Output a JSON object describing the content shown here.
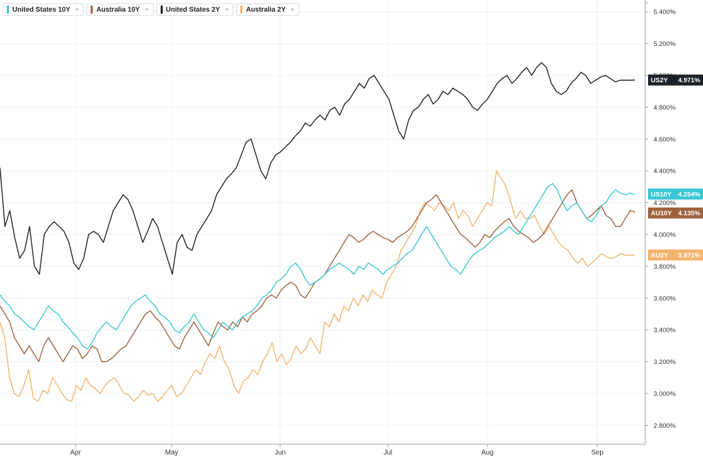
{
  "legend": [
    {
      "label": "United States 10Y",
      "color": "#3cc8d3",
      "close": "×"
    },
    {
      "label": "Australia 10Y",
      "color": "#a0623e",
      "close": "×"
    },
    {
      "label": "United States 2Y",
      "color": "#222222",
      "close": "×"
    },
    {
      "label": "Australia 2Y",
      "color": "#f2b46e",
      "close": "×"
    }
  ],
  "badges": [
    {
      "ticker": "US2Y",
      "value": "4.971%",
      "color": "#1b2228"
    },
    {
      "ticker": "US10Y",
      "value": "4.254%",
      "color": "#3cc8d3"
    },
    {
      "ticker": "AU10Y",
      "value": "4.135%",
      "color": "#a0623e"
    },
    {
      "ticker": "AU2Y",
      "value": "3.871%",
      "color": "#f2b46e"
    }
  ],
  "chart_data": {
    "type": "line",
    "x_labels": [
      "Apr",
      "May",
      "Jun",
      "Jul",
      "Aug",
      "Sep"
    ],
    "y_ticks": [
      "5.400%",
      "5.200%",
      "5.000%",
      "4.800%",
      "4.600%",
      "4.400%",
      "4.200%",
      "4.000%",
      "3.800%",
      "3.600%",
      "3.400%",
      "3.200%",
      "3.000%",
      "2.800%"
    ],
    "ylim": [
      2.72,
      5.46
    ],
    "grid": true,
    "series": [
      {
        "name": "Australia 2Y",
        "color": "#f2b46e",
        "values": [
          3.45,
          3.35,
          3.1,
          3.0,
          2.98,
          3.05,
          3.15,
          2.97,
          2.95,
          3.02,
          3.0,
          3.1,
          3.05,
          3.0,
          2.96,
          2.95,
          3.05,
          3.02,
          3.1,
          3.05,
          3.03,
          3.0,
          3.05,
          3.08,
          3.1,
          3.05,
          3.0,
          2.99,
          2.95,
          2.98,
          3.02,
          2.99,
          3.0,
          2.95,
          2.98,
          3.02,
          3.05,
          2.98,
          3.0,
          3.05,
          3.1,
          3.15,
          3.12,
          3.2,
          3.25,
          3.22,
          3.3,
          3.2,
          3.15,
          3.05,
          3.0,
          3.08,
          3.1,
          3.15,
          3.12,
          3.2,
          3.25,
          3.32,
          3.2,
          3.25,
          3.18,
          3.22,
          3.3,
          3.25,
          3.28,
          3.35,
          3.3,
          3.25,
          3.45,
          3.42,
          3.5,
          3.45,
          3.55,
          3.52,
          3.6,
          3.55,
          3.62,
          3.58,
          3.65,
          3.62,
          3.6,
          3.7,
          3.75,
          3.8,
          3.9,
          3.95,
          4.0,
          4.05,
          4.15,
          4.2,
          4.18,
          4.15,
          4.2,
          4.18,
          4.15,
          4.2,
          4.1,
          4.15,
          4.12,
          4.05,
          4.1,
          4.15,
          4.2,
          4.18,
          4.4,
          4.35,
          4.3,
          4.2,
          4.1,
          4.15,
          4.1,
          4.1,
          4.12,
          4.05,
          4.0,
          4.05,
          4.0,
          3.95,
          3.92,
          3.9,
          3.85,
          3.82,
          3.85,
          3.8,
          3.82,
          3.85,
          3.88,
          3.86,
          3.85,
          3.86,
          3.88,
          3.87,
          3.87,
          3.87
        ]
      },
      {
        "name": "Australia 10Y",
        "color": "#a0623e",
        "values": [
          3.55,
          3.5,
          3.45,
          3.35,
          3.3,
          3.25,
          3.3,
          3.25,
          3.2,
          3.3,
          3.35,
          3.3,
          3.25,
          3.2,
          3.25,
          3.3,
          3.28,
          3.22,
          3.25,
          3.3,
          3.28,
          3.2,
          3.2,
          3.22,
          3.25,
          3.28,
          3.3,
          3.35,
          3.4,
          3.45,
          3.5,
          3.52,
          3.48,
          3.45,
          3.4,
          3.35,
          3.3,
          3.28,
          3.35,
          3.4,
          3.45,
          3.4,
          3.35,
          3.3,
          3.38,
          3.45,
          3.42,
          3.4,
          3.45,
          3.42,
          3.48,
          3.45,
          3.5,
          3.52,
          3.55,
          3.6,
          3.62,
          3.6,
          3.65,
          3.68,
          3.7,
          3.68,
          3.62,
          3.6,
          3.65,
          3.7,
          3.72,
          3.75,
          3.8,
          3.85,
          3.9,
          3.95,
          4.0,
          3.98,
          3.95,
          3.97,
          4.0,
          4.02,
          4.0,
          3.98,
          3.97,
          3.95,
          3.98,
          4.0,
          4.02,
          4.05,
          4.1,
          4.15,
          4.2,
          4.22,
          4.25,
          4.2,
          4.15,
          4.1,
          4.05,
          4.0,
          3.98,
          3.95,
          3.92,
          3.95,
          4.0,
          3.98,
          4.02,
          4.05,
          4.08,
          4.1,
          4.05,
          4.02,
          4.0,
          3.98,
          3.95,
          3.97,
          4.0,
          4.05,
          4.1,
          4.15,
          4.2,
          4.25,
          4.28,
          4.2,
          4.15,
          4.1,
          4.12,
          4.15,
          4.18,
          4.12,
          4.1,
          4.05,
          4.05,
          4.1,
          4.15,
          4.14
        ]
      },
      {
        "name": "United States 10Y",
        "color": "#3cc8d3",
        "values": [
          3.62,
          3.58,
          3.55,
          3.5,
          3.48,
          3.45,
          3.42,
          3.4,
          3.45,
          3.5,
          3.55,
          3.52,
          3.5,
          3.45,
          3.42,
          3.38,
          3.35,
          3.3,
          3.28,
          3.32,
          3.38,
          3.42,
          3.45,
          3.42,
          3.4,
          3.45,
          3.5,
          3.55,
          3.58,
          3.6,
          3.62,
          3.58,
          3.55,
          3.5,
          3.48,
          3.45,
          3.4,
          3.38,
          3.42,
          3.45,
          3.5,
          3.45,
          3.4,
          3.38,
          3.35,
          3.4,
          3.45,
          3.42,
          3.4,
          3.45,
          3.48,
          3.5,
          3.52,
          3.55,
          3.6,
          3.62,
          3.65,
          3.7,
          3.72,
          3.75,
          3.8,
          3.82,
          3.78,
          3.72,
          3.68,
          3.7,
          3.72,
          3.75,
          3.78,
          3.8,
          3.82,
          3.8,
          3.78,
          3.75,
          3.8,
          3.78,
          3.82,
          3.8,
          3.78,
          3.75,
          3.78,
          3.8,
          3.82,
          3.85,
          3.88,
          3.9,
          3.95,
          4.0,
          4.05,
          4.0,
          3.95,
          3.9,
          3.85,
          3.8,
          3.78,
          3.75,
          3.8,
          3.85,
          3.88,
          3.9,
          3.92,
          3.95,
          3.98,
          4.0,
          4.02,
          4.05,
          4.02,
          4.0,
          4.05,
          4.1,
          4.15,
          4.2,
          4.25,
          4.3,
          4.32,
          4.28,
          4.2,
          4.15,
          4.18,
          4.2,
          4.15,
          4.1,
          4.08,
          4.12,
          4.18,
          4.2,
          4.25,
          4.28,
          4.26,
          4.25,
          4.26,
          4.25
        ]
      },
      {
        "name": "United States 2Y",
        "color": "#222222",
        "values": [
          4.42,
          4.05,
          4.15,
          3.98,
          3.85,
          3.9,
          4.05,
          3.8,
          3.75,
          4.0,
          4.05,
          4.08,
          4.05,
          4.02,
          3.95,
          3.82,
          3.78,
          3.85,
          4.0,
          4.02,
          4.0,
          3.95,
          4.05,
          4.15,
          4.2,
          4.25,
          4.22,
          4.15,
          4.05,
          3.95,
          4.02,
          4.1,
          4.05,
          3.95,
          3.85,
          3.75,
          3.95,
          4.0,
          3.92,
          3.9,
          4.0,
          4.05,
          4.1,
          4.15,
          4.25,
          4.3,
          4.35,
          4.38,
          4.42,
          4.5,
          4.58,
          4.6,
          4.5,
          4.4,
          4.35,
          4.45,
          4.5,
          4.52,
          4.55,
          4.58,
          4.62,
          4.65,
          4.7,
          4.68,
          4.72,
          4.75,
          4.72,
          4.78,
          4.8,
          4.75,
          4.82,
          4.85,
          4.9,
          4.95,
          4.92,
          4.98,
          5.0,
          4.95,
          4.9,
          4.85,
          4.75,
          4.65,
          4.6,
          4.72,
          4.78,
          4.8,
          4.85,
          4.88,
          4.82,
          4.85,
          4.9,
          4.88,
          4.92,
          4.9,
          4.88,
          4.85,
          4.8,
          4.78,
          4.82,
          4.85,
          4.9,
          4.95,
          4.98,
          5.0,
          4.95,
          4.98,
          5.02,
          5.05,
          5.0,
          5.05,
          5.08,
          5.05,
          4.95,
          4.9,
          4.88,
          4.9,
          4.95,
          4.98,
          5.02,
          5.0,
          4.95,
          4.97,
          4.99,
          5.0,
          4.98,
          4.96,
          4.97,
          4.97,
          4.97,
          4.971
        ]
      }
    ]
  }
}
